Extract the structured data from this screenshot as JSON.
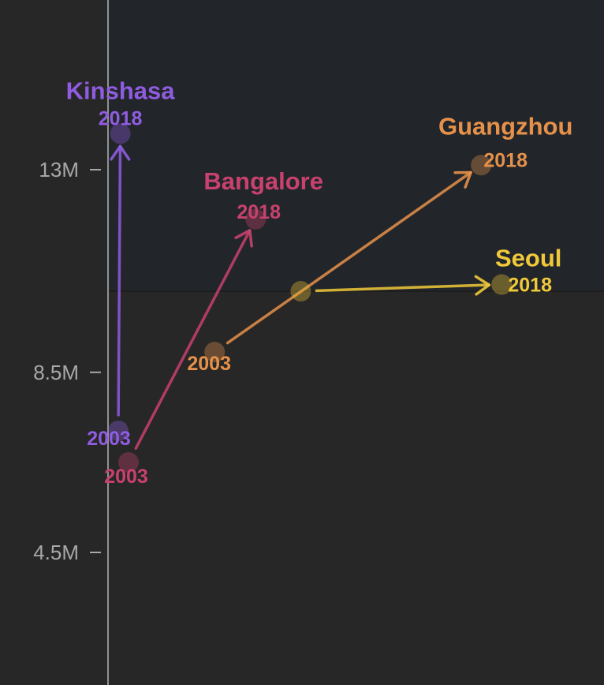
{
  "chart_data": {
    "type": "scatter",
    "title": "",
    "xlabel": "",
    "ylabel": "",
    "y_ticks": [
      {
        "value": 13000000,
        "label": "13M"
      },
      {
        "value": 8500000,
        "label": "8.5M"
      },
      {
        "value": 4500000,
        "label": "4.5M"
      }
    ],
    "highlight_band_from": 10300000,
    "series": [
      {
        "name": "Kinshasa",
        "color": "#8f5ce0",
        "points": [
          {
            "year_label": "2003",
            "x": 0.05,
            "y": 7200000
          },
          {
            "year_label": "2018",
            "x": 0.06,
            "y": 13800000
          }
        ]
      },
      {
        "name": "Bangalore",
        "color": "#c9416e",
        "points": [
          {
            "year_label": "2003",
            "x": 0.1,
            "y": 6500000
          },
          {
            "year_label": "2018",
            "x": 0.72,
            "y": 11900000
          }
        ]
      },
      {
        "name": "Guangzhou",
        "color": "#e6914a",
        "points": [
          {
            "year_label": "2003",
            "x": 0.52,
            "y": 8950000
          },
          {
            "year_label": "2018",
            "x": 1.82,
            "y": 13100000
          }
        ]
      },
      {
        "name": "Seoul",
        "color": "#f0c93a",
        "points": [
          {
            "year_label": "",
            "x": 0.94,
            "y": 10300000
          },
          {
            "year_label": "2018",
            "x": 1.92,
            "y": 10450000
          }
        ]
      }
    ]
  }
}
